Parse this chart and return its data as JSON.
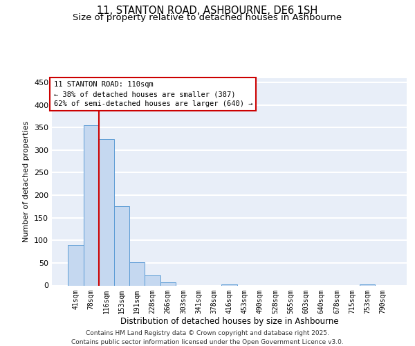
{
  "title_line1": "11, STANTON ROAD, ASHBOURNE, DE6 1SH",
  "title_line2": "Size of property relative to detached houses in Ashbourne",
  "xlabel": "Distribution of detached houses by size in Ashbourne",
  "ylabel": "Number of detached properties",
  "categories": [
    "41sqm",
    "78sqm",
    "116sqm",
    "153sqm",
    "191sqm",
    "228sqm",
    "266sqm",
    "303sqm",
    "341sqm",
    "378sqm",
    "416sqm",
    "453sqm",
    "490sqm",
    "528sqm",
    "565sqm",
    "603sqm",
    "640sqm",
    "678sqm",
    "715sqm",
    "753sqm",
    "790sqm"
  ],
  "values": [
    90,
    355,
    325,
    175,
    52,
    23,
    7,
    0,
    0,
    0,
    3,
    0,
    0,
    0,
    0,
    0,
    0,
    0,
    0,
    2,
    0
  ],
  "bar_color": "#c5d8f0",
  "bar_edge_color": "#5b9bd5",
  "vline_x": 1.5,
  "vline_color": "#cc0000",
  "annotation_text": "11 STANTON ROAD: 110sqm\n← 38% of detached houses are smaller (387)\n62% of semi-detached houses are larger (640) →",
  "annotation_box_color": "#ffffff",
  "annotation_box_edge_color": "#cc0000",
  "ylim": [
    0,
    460
  ],
  "yticks": [
    0,
    50,
    100,
    150,
    200,
    250,
    300,
    350,
    400,
    450
  ],
  "background_color": "#e8eef8",
  "grid_color": "#ffffff",
  "footer_line1": "Contains HM Land Registry data © Crown copyright and database right 2025.",
  "footer_line2": "Contains public sector information licensed under the Open Government Licence v3.0.",
  "title_fontsize": 10.5,
  "subtitle_fontsize": 9.5,
  "annotation_fontsize": 7.5,
  "footer_fontsize": 6.5,
  "ylabel_fontsize": 8,
  "xlabel_fontsize": 8.5,
  "ytick_fontsize": 8,
  "xtick_fontsize": 7
}
